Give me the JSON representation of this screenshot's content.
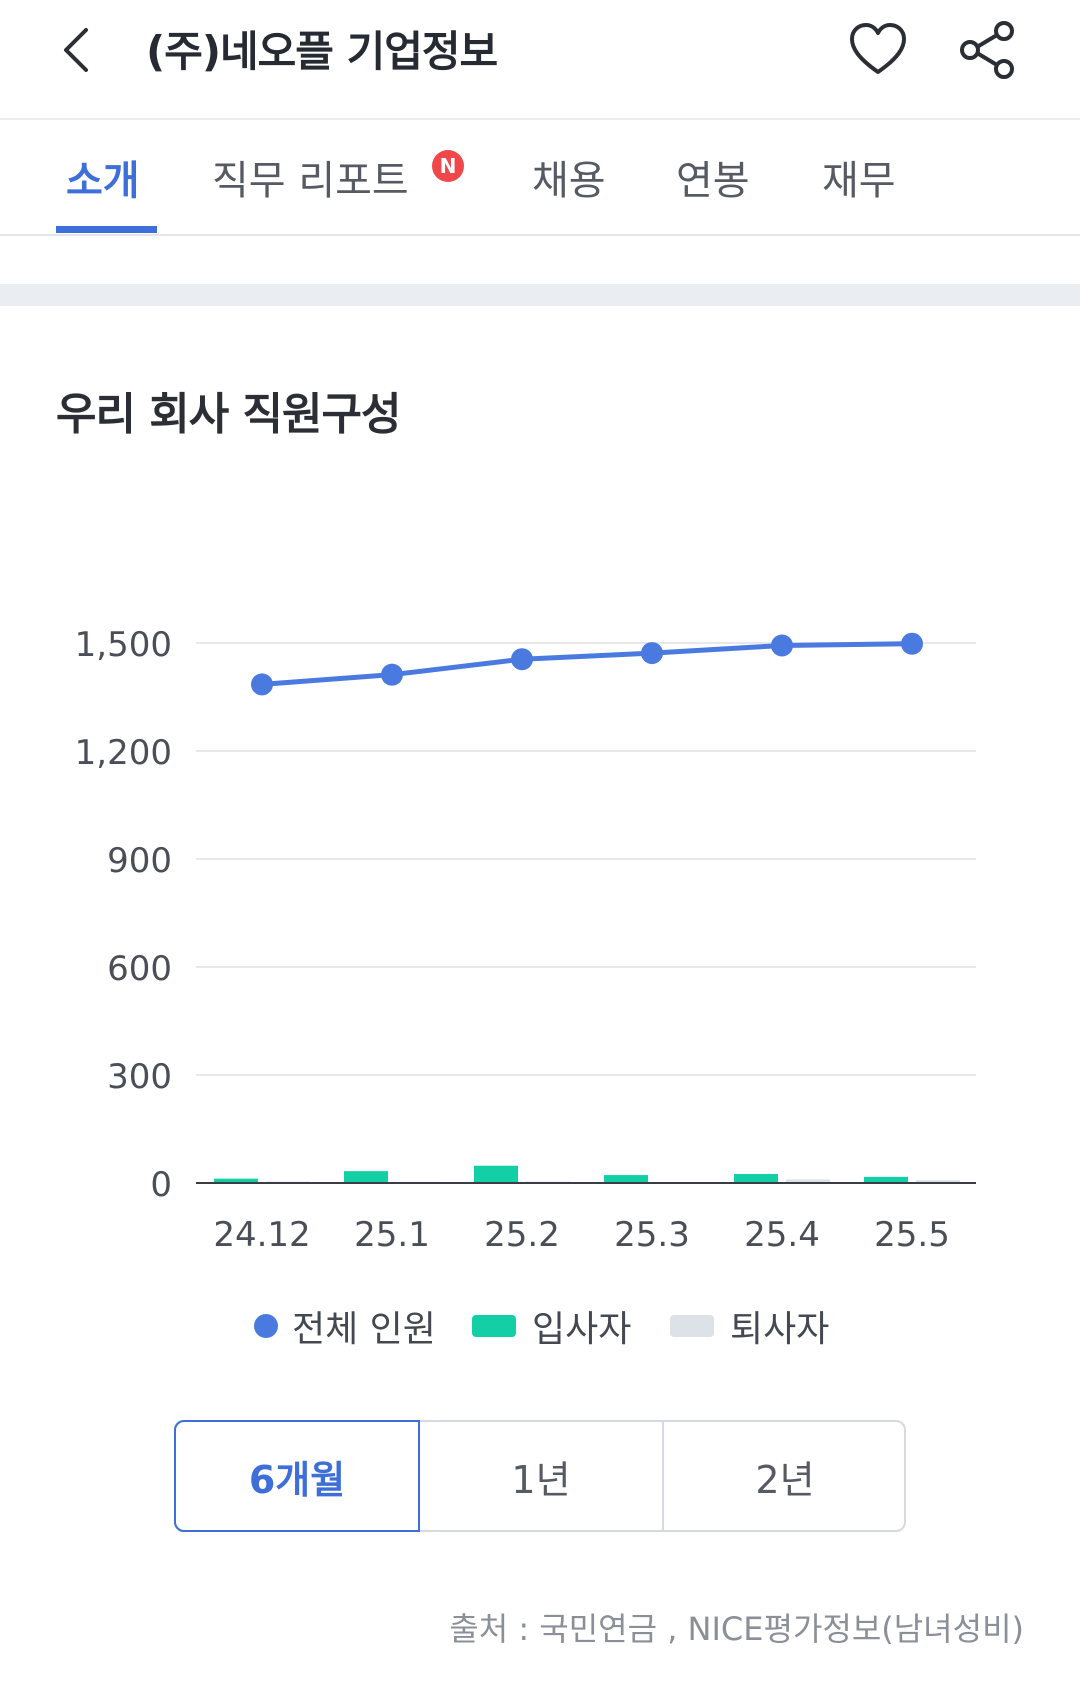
{
  "header": {
    "title": "(주)네오플 기업정보",
    "back_icon": "chevron-left-icon",
    "favorite_icon": "heart-icon",
    "share_icon": "share-icon"
  },
  "tabs": [
    {
      "label": "소개",
      "active": true
    },
    {
      "label": "직무 리포트",
      "badge": "N"
    },
    {
      "label": "채용"
    },
    {
      "label": "연봉"
    },
    {
      "label": "재무"
    }
  ],
  "section": {
    "title": "우리 회사 직원구성"
  },
  "chart_data": {
    "type": "bar",
    "categories": [
      "24.12",
      "25.1",
      "25.2",
      "25.3",
      "25.4",
      "25.5"
    ],
    "y_ticks": [
      "0",
      "300",
      "600",
      "900",
      "1,200",
      "1,500"
    ],
    "ylim": [
      0,
      1500
    ],
    "grid": true,
    "legend_position": "bottom",
    "series": [
      {
        "name": "전체 인원",
        "kind": "line",
        "color": "#4a7ae0",
        "values": [
          1385,
          1412,
          1455,
          1472,
          1493,
          1498
        ]
      },
      {
        "name": "입사자",
        "kind": "bar",
        "color": "#12cfa6",
        "values": [
          12,
          33,
          48,
          22,
          25,
          17
        ]
      },
      {
        "name": "퇴사자",
        "kind": "bar",
        "color": "#dde1e8",
        "values": [
          4,
          3,
          4,
          2,
          10,
          8
        ]
      }
    ]
  },
  "period": {
    "options": [
      "6개월",
      "1년",
      "2년"
    ],
    "selected": "6개월"
  },
  "source": "출처 : 국민연금 , NICE평가정보(남녀성비)"
}
